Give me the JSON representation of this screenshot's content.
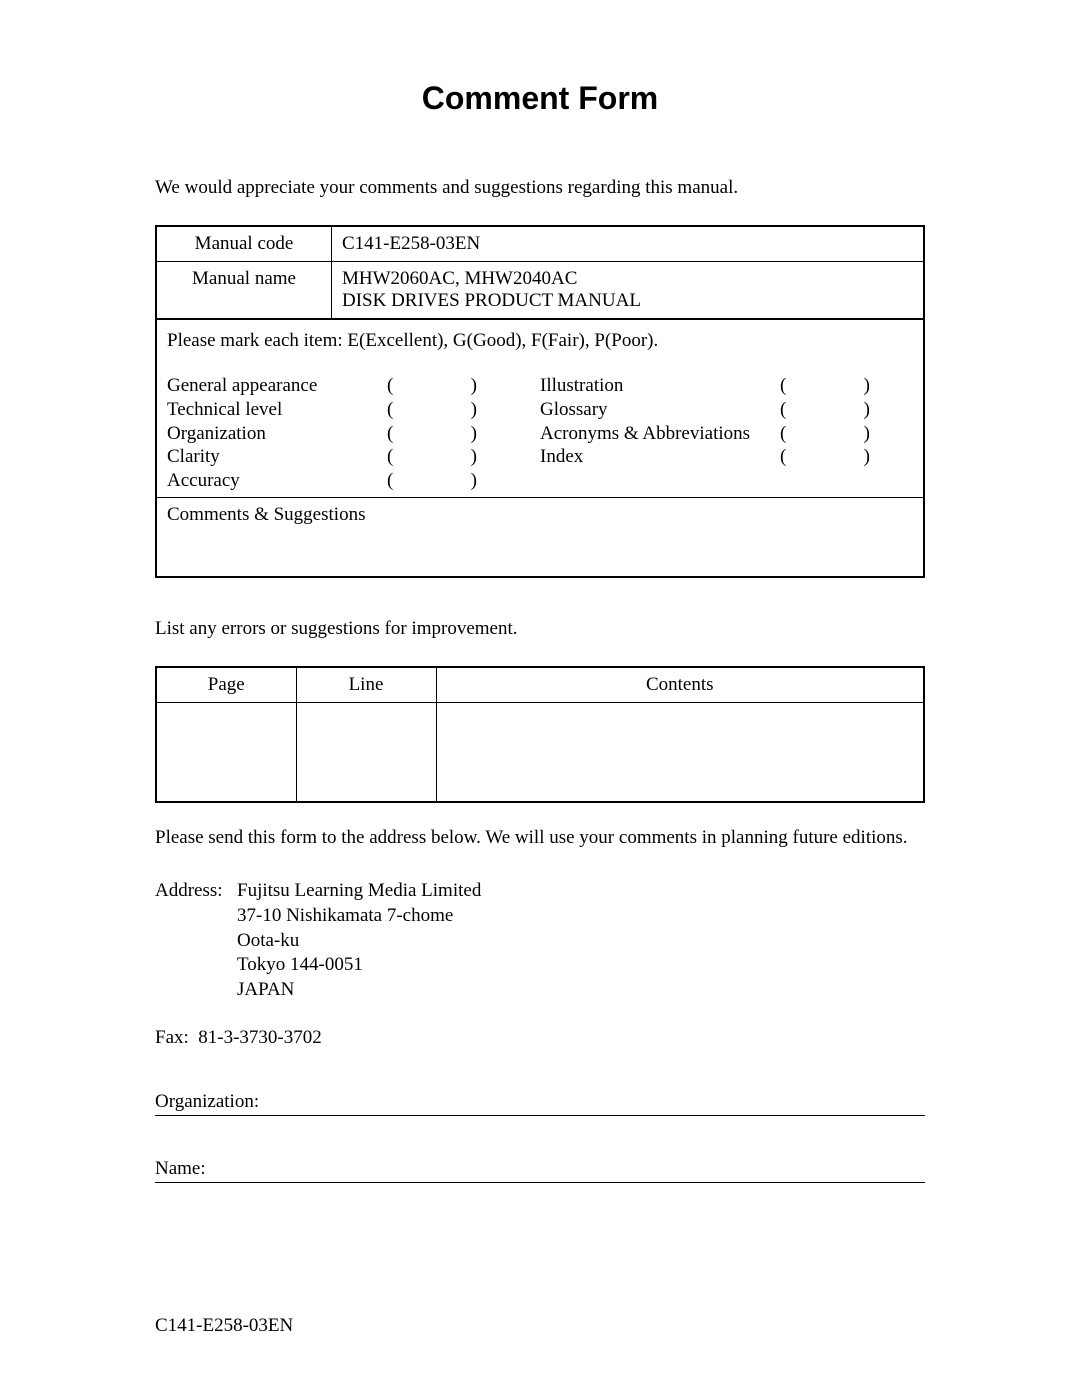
{
  "title": "Comment Form",
  "intro": "We would appreciate your comments and suggestions regarding this manual.",
  "manual_code_label": "Manual code",
  "manual_code_value": "C141-E258-03EN",
  "manual_name_label": "Manual name",
  "manual_name_value_line1": "MHW2060AC, MHW2040AC",
  "manual_name_value_line2": "DISK DRIVES PRODUCT MANUAL",
  "rating_instruction": "Please mark each item:  E(Excellent), G(Good), F(Fair), P(Poor).",
  "rating_items_left": [
    "General appearance",
    "Technical level",
    "Organization",
    "Clarity",
    "Accuracy"
  ],
  "rating_items_right": [
    "Illustration",
    "Glossary",
    "Acronyms & Abbreviations",
    "Index"
  ],
  "open_paren": "(",
  "close_paren": ")",
  "comments_label": "Comments & Suggestions",
  "list_intro": "List any errors or suggestions for improvement.",
  "err_headers": [
    "Page",
    "Line",
    "Contents"
  ],
  "send_text": "Please send this form to the address below.  We will use your comments in planning future editions.",
  "address_label": "Address:",
  "address_lines": [
    "Fujitsu Learning Media Limited",
    "37-10 Nishikamata 7-chome",
    "Oota-ku",
    "Tokyo 144-0051",
    "JAPAN"
  ],
  "fax_label": "Fax:",
  "fax_value": "81-3-3730-3702",
  "org_label": "Organization:",
  "name_label": "Name:",
  "footer_code": "C141-E258-03EN"
}
